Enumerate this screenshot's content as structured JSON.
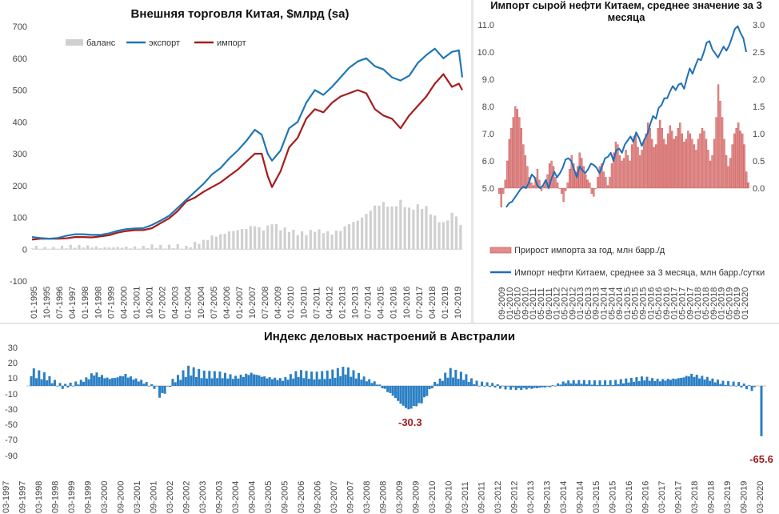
{
  "colors": {
    "export": "#1f77b4",
    "import": "#a61c1c",
    "balance": "#d0d0d0",
    "oil_growth_fill": "#e48b8b",
    "oil_growth_stroke": "#c0504d",
    "oil_imports": "#1f6fb8",
    "aus_bar": "#2b7fc4",
    "annotation": "#9c1c1c"
  },
  "chart_data": [
    {
      "type": "line",
      "title": "Внешняя торговля Китая, $млрд (sa)",
      "ylim": [
        -100,
        700
      ],
      "y_ticks": [
        "700",
        "600",
        "500",
        "400",
        "300",
        "200",
        "100",
        "0",
        "-100"
      ],
      "x_tick_labels": [
        "01-1995",
        "10-1995",
        "07-1996",
        "04-1997",
        "01-1998",
        "10-1998",
        "07-1999",
        "04-2000",
        "01-2001",
        "10-2001",
        "07-2002",
        "04-2003",
        "01-2004",
        "10-2004",
        "07-2005",
        "04-2006",
        "01-2007",
        "10-2007",
        "07-2008",
        "04-2009",
        "01-2010",
        "10-2010",
        "07-2011",
        "04-2012",
        "01-2013",
        "10-2013",
        "07-2014",
        "04-2015",
        "01-2016",
        "10-2016",
        "07-2017",
        "04-2018",
        "01-2019",
        "10-2019"
      ],
      "legend": [
        "баланс",
        "экспорт",
        "импорт"
      ],
      "x": [
        1995.0,
        1995.5,
        1996.0,
        1996.5,
        1997.0,
        1997.5,
        1998.0,
        1998.5,
        1999.0,
        1999.5,
        2000.0,
        2000.5,
        2001.0,
        2001.5,
        2002.0,
        2002.5,
        2003.0,
        2003.5,
        2004.0,
        2004.5,
        2005.0,
        2005.5,
        2006.0,
        2006.5,
        2007.0,
        2007.5,
        2008.0,
        2008.4,
        2008.75,
        2009.0,
        2009.5,
        2010.0,
        2010.5,
        2011.0,
        2011.5,
        2012.0,
        2012.5,
        2013.0,
        2013.5,
        2014.0,
        2014.5,
        2015.0,
        2015.5,
        2016.0,
        2016.5,
        2017.0,
        2017.5,
        2018.0,
        2018.5,
        2019.0,
        2019.5,
        2019.9,
        2020.1
      ],
      "series": [
        {
          "name": "экспорт",
          "values": [
            38,
            35,
            33,
            35,
            42,
            47,
            47,
            45,
            45,
            50,
            58,
            63,
            65,
            66,
            76,
            90,
            105,
            130,
            155,
            180,
            205,
            235,
            255,
            285,
            310,
            340,
            375,
            360,
            300,
            278,
            310,
            380,
            400,
            460,
            500,
            485,
            510,
            540,
            570,
            590,
            600,
            575,
            565,
            540,
            530,
            545,
            585,
            610,
            630,
            600,
            620,
            625,
            540
          ]
        },
        {
          "name": "импорт",
          "values": [
            30,
            33,
            33,
            33,
            34,
            38,
            38,
            37,
            40,
            44,
            52,
            57,
            60,
            60,
            66,
            82,
            97,
            120,
            150,
            162,
            180,
            195,
            210,
            230,
            250,
            275,
            300,
            300,
            230,
            195,
            245,
            320,
            350,
            410,
            440,
            430,
            460,
            480,
            490,
            500,
            490,
            440,
            420,
            410,
            380,
            420,
            450,
            480,
            520,
            550,
            510,
            520,
            500
          ]
        },
        {
          "name": "баланс",
          "values": [
            8,
            2,
            0,
            2,
            8,
            9,
            9,
            8,
            5,
            6,
            6,
            6,
            5,
            6,
            10,
            8,
            8,
            10,
            5,
            18,
            25,
            40,
            45,
            55,
            60,
            65,
            75,
            60,
            70,
            83,
            65,
            60,
            50,
            50,
            60,
            55,
            50,
            60,
            80,
            90,
            110,
            135,
            145,
            130,
            150,
            125,
            135,
            130,
            100,
            80,
            110,
            105,
            40
          ]
        }
      ]
    },
    {
      "type": "bar",
      "title": "Импорт сырой нефти Китаем, среднее значение за 3 месяца",
      "ylim_left": [
        4.0,
        11.0
      ],
      "ylim_right": [
        -0.5,
        3.0
      ],
      "y_left_ticks": [
        "11.0",
        "10.0",
        "9.0",
        "8.0",
        "7.0",
        "6.0",
        "5.0"
      ],
      "y_right_ticks": [
        "3.0",
        "2.5",
        "2.0",
        "1.5",
        "1.0",
        "0.5",
        "0.0"
      ],
      "x_tick_labels": [
        "09-2009",
        "01-2010",
        "05-2010",
        "09-2010",
        "01-2011",
        "05-2011",
        "09-2011",
        "01-2012",
        "05-2012",
        "09-2012",
        "01-2013",
        "05-2013",
        "09-2013",
        "01-2014",
        "05-2014",
        "09-2014",
        "01-2015",
        "05-2015",
        "09-2015",
        "01-2016",
        "05-2016",
        "09-2016",
        "01-2017",
        "05-2017",
        "09-2017",
        "01-2018",
        "05-2018",
        "09-2018",
        "01-2019",
        "05-2019",
        "09-2019",
        "01-2020"
      ],
      "legend": [
        "Прирост импорта за год, млн барр./д",
        "Импорт нефти Китаем, среднее за 3 месяца, млн барр./сутки"
      ],
      "bar_values": [
        -0.1,
        -0.35,
        -0.1,
        0.15,
        0.5,
        0.9,
        1.1,
        1.3,
        1.5,
        1.45,
        1.3,
        1.1,
        0.8,
        0.6,
        0.4,
        0.2,
        0.1,
        0.05,
        0.2,
        0.35,
        0.15,
        -0.05,
        0.05,
        0.1,
        0.25,
        0.45,
        0.5,
        0.4,
        0.2,
        0.1,
        0.0,
        -0.1,
        -0.25,
        -0.05,
        0.1,
        0.35,
        0.6,
        0.45,
        0.3,
        0.4,
        0.65,
        0.55,
        0.4,
        0.25,
        0.15,
        0.1,
        -0.1,
        -0.15,
        0.0,
        0.2,
        0.4,
        0.45,
        0.3,
        0.2,
        0.05,
        0.2,
        0.45,
        0.65,
        0.85,
        0.8,
        0.6,
        0.5,
        0.55,
        0.7,
        0.6,
        0.5,
        0.8,
        0.95,
        1.0,
        0.75,
        0.6,
        0.7,
        0.85,
        1.0,
        1.2,
        1.1,
        0.9,
        0.75,
        0.8,
        1.1,
        1.25,
        1.1,
        0.9,
        0.8,
        1.0,
        1.15,
        1.05,
        0.9,
        0.95,
        1.1,
        1.2,
        1.0,
        0.85,
        0.9,
        1.05,
        1.0,
        0.9,
        0.8,
        0.7,
        0.9,
        1.0,
        1.1,
        1.05,
        0.9,
        0.7,
        0.5,
        0.6,
        0.9,
        1.3,
        1.9,
        1.6,
        1.3,
        0.9,
        0.6,
        0.4,
        0.55,
        0.8,
        1.0,
        1.1,
        1.2,
        1.05,
        1.0,
        0.8,
        0.3,
        0.1
      ],
      "line_values": [
        4.3,
        4.45,
        4.5,
        4.65,
        4.8,
        4.95,
        5.05,
        5.0,
        5.2,
        5.5,
        5.4,
        5.1,
        5.0,
        5.1,
        5.3,
        5.0,
        5.35,
        5.6,
        5.4,
        5.55,
        5.75,
        6.05,
        6.1,
        6.0,
        5.7,
        5.4,
        5.8,
        5.65,
        5.55,
        5.7,
        5.9,
        5.85,
        5.75,
        5.55,
        5.8,
        6.1,
        6.15,
        6.3,
        6.0,
        6.4,
        6.45,
        6.3,
        6.6,
        6.75,
        6.9,
        6.7,
        7.05,
        6.85,
        6.55,
        6.8,
        7.0,
        7.35,
        7.65,
        7.55,
        7.95,
        8.05,
        8.3,
        8.3,
        8.55,
        8.75,
        8.6,
        8.8,
        8.85,
        8.65,
        9.05,
        9.4,
        9.2,
        9.5,
        9.75,
        9.7,
        10.0,
        10.35,
        10.4,
        10.1,
        9.95,
        9.8,
        10.0,
        10.2,
        10.05,
        10.25,
        10.55,
        10.85,
        10.95,
        10.7,
        10.5,
        10.0
      ]
    },
    {
      "type": "bar",
      "title": "Индекс деловых настроений в Австралии",
      "ylim": [
        -90,
        30
      ],
      "y_ticks": [
        "30",
        "20",
        "10",
        "-10",
        "-30",
        "-50",
        "-70",
        "-90"
      ],
      "x_tick_labels": [
        "03-1997",
        "09-1997",
        "03-1998",
        "09-1998",
        "03-1999",
        "09-1999",
        "03-2000",
        "09-2000",
        "03-2001",
        "09-2001",
        "03-2002",
        "09-2002",
        "03-2003",
        "09-2003",
        "03-2004",
        "09-2004",
        "03-2005",
        "09-2005",
        "03-2006",
        "09-2006",
        "03-2007",
        "09-2007",
        "03-2008",
        "09-2008",
        "03-2009",
        "09-2009",
        "03-2010",
        "09-2010",
        "03-2011",
        "09-2011",
        "03-2012",
        "09-2012",
        "03-2013",
        "09-2013",
        "03-2014",
        "09-2014",
        "03-2015",
        "09-2015",
        "03-2016",
        "09-2016",
        "03-2017",
        "09-2017",
        "03-2018",
        "09-2018",
        "03-2019",
        "09-2019",
        "03-2020"
      ],
      "annotations": [
        "-30.3",
        "-65.6"
      ],
      "x": [
        1997.0,
        1997.5,
        1998.0,
        1998.5,
        1999.0,
        1999.5,
        2000.0,
        2000.5,
        2001.0,
        2001.1,
        2001.5,
        2002.0,
        2002.5,
        2003.0,
        2003.5,
        2004.0,
        2004.5,
        2005.0,
        2005.5,
        2006.0,
        2006.5,
        2007.0,
        2007.5,
        2008.0,
        2008.5,
        2008.8,
        2009.0,
        2009.4,
        2009.8,
        2010.3,
        2010.8,
        2011.2,
        2011.7,
        2012.0,
        2012.5,
        2013.0,
        2013.5,
        2014.0,
        2014.5,
        2015.0,
        2015.5,
        2016.0,
        2016.5,
        2017.0,
        2017.5,
        2018.0,
        2018.5,
        2019.0,
        2019.5,
        2019.9,
        2020.1,
        2020.22
      ],
      "values": [
        14,
        10,
        -1,
        4,
        13,
        9,
        12,
        6,
        -3,
        -15,
        6,
        15,
        12,
        12,
        10,
        13,
        10,
        8,
        13,
        11,
        12,
        15,
        10,
        3,
        -12,
        -25,
        -30.3,
        -22,
        2,
        14,
        10,
        3,
        1,
        -2,
        -4,
        -3,
        -1,
        5,
        5,
        4,
        4,
        7,
        9,
        7,
        9,
        12,
        9,
        4,
        2,
        -3,
        -6,
        -65.6
      ]
    }
  ]
}
